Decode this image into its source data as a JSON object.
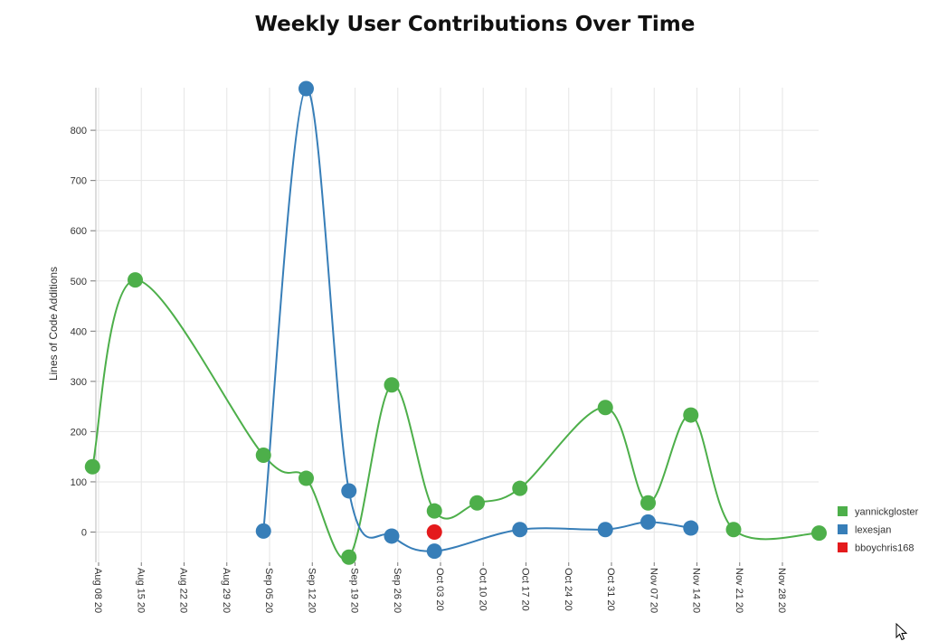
{
  "chart_data": {
    "type": "line",
    "title": "Weekly User Contributions Over Time",
    "ylabel": "Lines of Code Additions",
    "xlabel": "",
    "ylim": [
      -55,
      880
    ],
    "y_ticks": [
      0,
      100,
      200,
      300,
      400,
      500,
      600,
      700,
      800
    ],
    "x_ticks": [
      "Aug 08 20",
      "Aug 15 20",
      "Aug 22 20",
      "Aug 29 20",
      "Sep 05 20",
      "Sep 12 20",
      "Sep 19 20",
      "Sep 26 20",
      "Oct 03 20",
      "Oct 10 20",
      "Oct 17 20",
      "Oct 24 20",
      "Oct 31 20",
      "Nov 07 20",
      "Nov 14 20",
      "Nov 21 20",
      "Nov 28 20"
    ],
    "grid": true,
    "legend_position": "right",
    "series": [
      {
        "name": "yannickgloster",
        "color": "#4daf4a",
        "points": [
          {
            "x": "2020-08-07",
            "y": 130
          },
          {
            "x": "2020-08-14",
            "y": 502
          },
          {
            "x": "2020-09-04",
            "y": 153
          },
          {
            "x": "2020-09-11",
            "y": 107
          },
          {
            "x": "2020-09-18",
            "y": -50
          },
          {
            "x": "2020-09-25",
            "y": 293
          },
          {
            "x": "2020-10-02",
            "y": 42
          },
          {
            "x": "2020-10-09",
            "y": 58
          },
          {
            "x": "2020-10-16",
            "y": 87
          },
          {
            "x": "2020-10-30",
            "y": 248
          },
          {
            "x": "2020-11-06",
            "y": 58
          },
          {
            "x": "2020-11-13",
            "y": 233
          },
          {
            "x": "2020-11-20",
            "y": 5
          },
          {
            "x": "2020-12-04",
            "y": -2
          }
        ]
      },
      {
        "name": "lexesjan",
        "color": "#377eb8",
        "points": [
          {
            "x": "2020-09-04",
            "y": 2
          },
          {
            "x": "2020-09-11",
            "y": 883
          },
          {
            "x": "2020-09-18",
            "y": 82
          },
          {
            "x": "2020-09-25",
            "y": -8
          },
          {
            "x": "2020-10-02",
            "y": -38
          },
          {
            "x": "2020-10-16",
            "y": 5
          },
          {
            "x": "2020-10-30",
            "y": 5
          },
          {
            "x": "2020-11-06",
            "y": 20
          },
          {
            "x": "2020-11-13",
            "y": 8
          }
        ]
      },
      {
        "name": "bboychris168",
        "color": "#e41a1c",
        "points": [
          {
            "x": "2020-10-02",
            "y": 0
          }
        ]
      }
    ]
  }
}
